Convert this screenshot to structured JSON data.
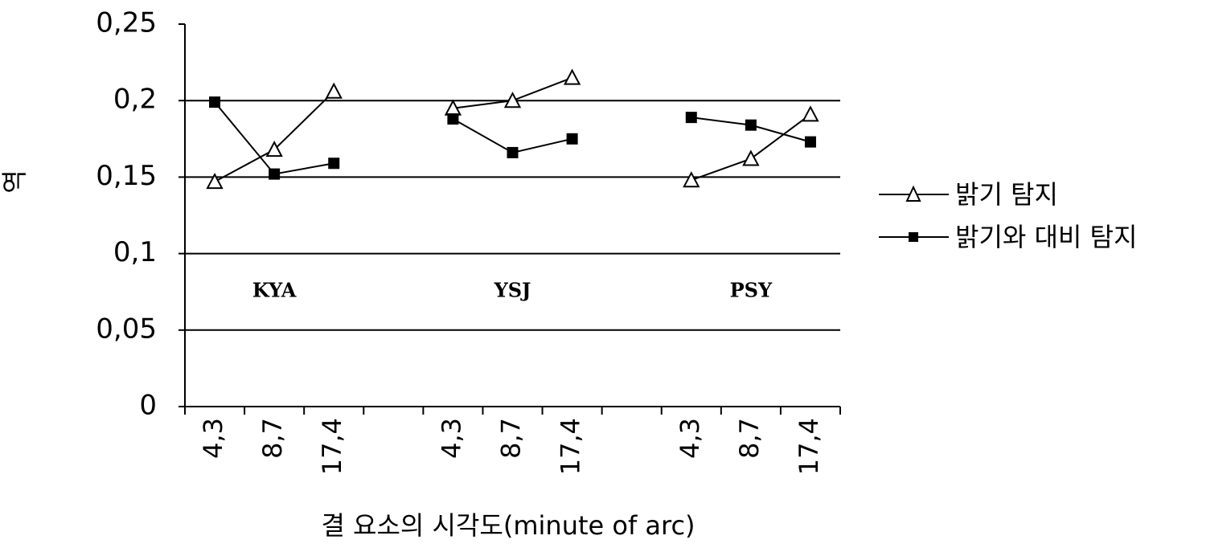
{
  "chart_data": {
    "type": "line",
    "title": "",
    "xlabel": "결 요소의 시각도(minute of arc)",
    "ylabel": "역",
    "ylim": [
      0,
      0.25
    ],
    "yticks": [
      {
        "value": 0,
        "label": "0"
      },
      {
        "value": 0.05,
        "label": "0,05"
      },
      {
        "value": 0.1,
        "label": "0,1"
      },
      {
        "value": 0.15,
        "label": "0,15"
      },
      {
        "value": 0.2,
        "label": "0,2"
      },
      {
        "value": 0.25,
        "label": "0,25"
      }
    ],
    "grid": "horizontal at 0.05, 0.1, 0.15, 0.2",
    "legend_position": "right",
    "groups": [
      {
        "name": "KYA",
        "categories": [
          "4,3",
          "8,7",
          "17,4"
        ],
        "series": [
          {
            "name": "밝기 탐지",
            "values": [
              0.147,
              0.168,
              0.206
            ]
          },
          {
            "name": "밝기와 대비 탐지",
            "values": [
              0.199,
              0.152,
              0.159
            ]
          }
        ]
      },
      {
        "name": "YSJ",
        "categories": [
          "4,3",
          "8,7",
          "17,4"
        ],
        "series": [
          {
            "name": "밝기 탐지",
            "values": [
              0.195,
              0.2,
              0.215
            ]
          },
          {
            "name": "밝기와 대비 탐지",
            "values": [
              0.188,
              0.166,
              0.175
            ]
          }
        ]
      },
      {
        "name": "PSY",
        "categories": [
          "4,3",
          "8,7",
          "17,4"
        ],
        "series": [
          {
            "name": "밝기 탐지",
            "values": [
              0.148,
              0.162,
              0.191
            ]
          },
          {
            "name": "밝기와 대비 탐지",
            "values": [
              0.189,
              0.184,
              0.173
            ]
          }
        ]
      }
    ],
    "legend": [
      {
        "name": "밝기 탐지",
        "marker": "open-triangle"
      },
      {
        "name": "밝기와 대비 탐지",
        "marker": "filled-square"
      }
    ],
    "colors": {
      "line": "#000000",
      "marker_fill": "#000000",
      "open_marker_fill": "#ffffff"
    }
  }
}
